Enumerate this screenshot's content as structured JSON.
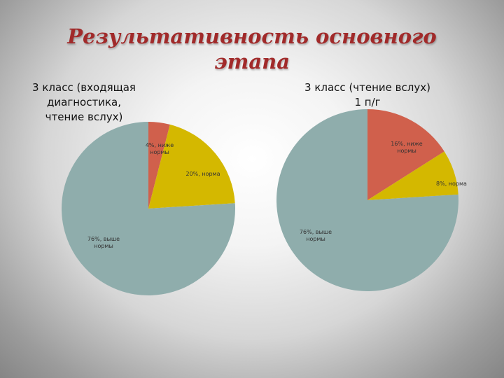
{
  "slide_title": {
    "line1": "Результативность основного",
    "line2": "этапа"
  },
  "colors": {
    "title": "#a12a2a",
    "below_norm": "#d0604c",
    "norm": "#d4b800",
    "above_norm": "#8fadac"
  },
  "chart_data": [
    {
      "type": "pie",
      "title": [
        "3 класс (входящая",
        "диагностика,",
        "чтение вслух)"
      ],
      "slices": [
        {
          "value": 4,
          "color": "#d0604c",
          "label": [
            "4%, ниже",
            "нормы"
          ]
        },
        {
          "value": 20,
          "color": "#d4b800",
          "label": [
            "20%, норма"
          ]
        },
        {
          "value": 76,
          "color": "#8fadac",
          "label": [
            "76%, выше",
            "нормы"
          ]
        }
      ]
    },
    {
      "type": "pie",
      "title": [
        "3 класс (чтение вслух)",
        "1 п/г"
      ],
      "slices": [
        {
          "value": 16,
          "color": "#d0604c",
          "label": [
            "16%, ниже",
            "нормы"
          ]
        },
        {
          "value": 8,
          "color": "#d4b800",
          "label": [
            "8%, норма"
          ]
        },
        {
          "value": 76,
          "color": "#8fadac",
          "label": [
            "76%, выше",
            "нормы"
          ]
        }
      ]
    }
  ]
}
